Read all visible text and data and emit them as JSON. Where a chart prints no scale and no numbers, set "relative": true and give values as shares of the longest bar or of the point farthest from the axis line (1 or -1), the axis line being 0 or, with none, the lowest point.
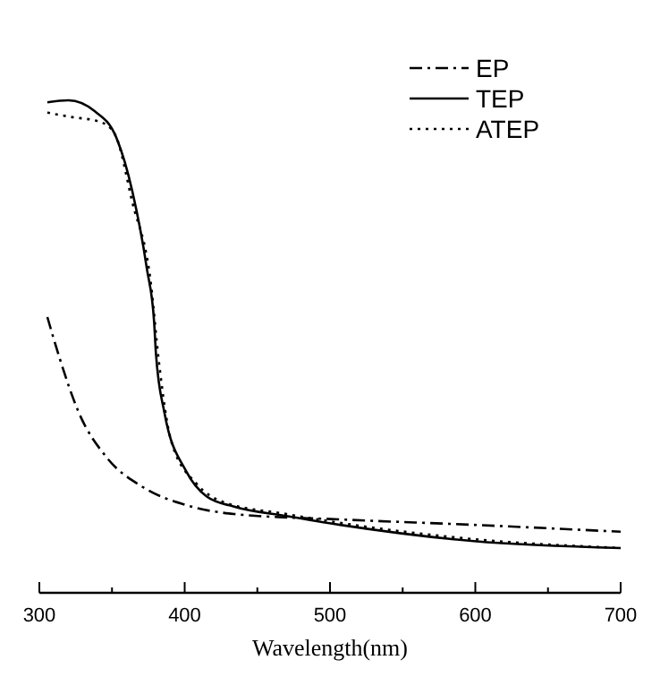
{
  "chart_data": {
    "type": "line",
    "relative": true,
    "xlabel": "Wavelength(nm)",
    "xlim": [
      300,
      700
    ],
    "xticks": [
      300,
      {
        "value": 350,
        "label": null
      },
      400,
      {
        "value": 450,
        "label": null
      },
      500,
      {
        "value": 550,
        "label": null
      },
      600,
      {
        "value": 650,
        "label": null
      },
      700
    ],
    "legend": "top right",
    "series": [
      {
        "name": "EP",
        "color": "#000000",
        "line_style": "dashdot",
        "x": [
          305.5,
          314,
          327,
          346,
          371,
          401,
          434,
          507,
          599,
          700
        ],
        "values": [
          0.56,
          0.476,
          0.367,
          0.276,
          0.215,
          0.178,
          0.16,
          0.149,
          0.138,
          0.124
        ]
      },
      {
        "name": "TEP",
        "color": "#000000",
        "line_style": "solid",
        "x": [
          305.5,
          320,
          338,
          353,
          364,
          374,
          379,
          380.2,
          386,
          401,
          415,
          434,
          470,
          507,
          599,
          700
        ],
        "values": [
          0.996,
          1,
          0.978,
          0.924,
          0.815,
          0.658,
          0.549,
          0.487,
          0.367,
          0.247,
          0.196,
          0.175,
          0.156,
          0.138,
          0.105,
          0.091
        ]
      },
      {
        "name": "ATEP",
        "color": "#000000",
        "line_style": "dotted",
        "x": [
          305.5,
          320,
          342,
          352,
          364,
          377,
          382,
          391,
          408,
          426,
          470,
          507,
          599,
          700
        ],
        "values": [
          0.975,
          0.967,
          0.956,
          0.931,
          0.793,
          0.622,
          0.476,
          0.305,
          0.222,
          0.185,
          0.16,
          0.142,
          0.109,
          0.091
        ]
      }
    ]
  }
}
